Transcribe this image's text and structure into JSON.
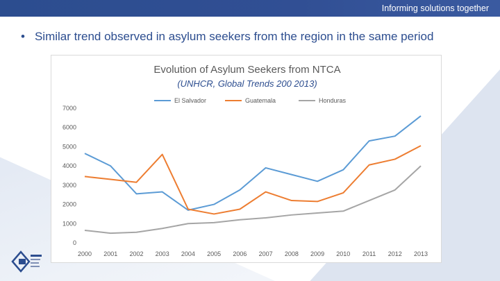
{
  "header": {
    "tagline": "Informing solutions together"
  },
  "slide": {
    "bullet": "Similar trend observed in asylum seekers from the region in the same period"
  },
  "colors": {
    "bar": "#2c4d8f",
    "accent": "#2c4d8f"
  },
  "chart_data": {
    "type": "line",
    "title": "Evolution of Asylum Seekers from NTCA",
    "subtitle": "(UNHCR, Global Trends 200 2013)",
    "x": [
      "2000",
      "2001",
      "2002",
      "2003",
      "2004",
      "2005",
      "2006",
      "2007",
      "2008",
      "2009",
      "2010",
      "2011",
      "2012",
      "2013"
    ],
    "ylim": [
      0,
      7000
    ],
    "yticks": [
      "0",
      "1000",
      "2000",
      "3000",
      "4000",
      "5000",
      "6000",
      "7000"
    ],
    "legend_position": "top",
    "grid": false,
    "series": [
      {
        "name": "El Salvador",
        "color": "#5b9bd5",
        "values": [
          4650,
          4000,
          2550,
          2650,
          1700,
          2000,
          2750,
          3900,
          3550,
          3200,
          3800,
          5300,
          5550,
          6600
        ]
      },
      {
        "name": "Guatemala",
        "color": "#ed7d31",
        "values": [
          3450,
          3300,
          3150,
          4600,
          1750,
          1500,
          1750,
          2650,
          2200,
          2150,
          2600,
          4050,
          4350,
          5050
        ]
      },
      {
        "name": "Honduras",
        "color": "#a5a5a5",
        "values": [
          650,
          500,
          550,
          750,
          1000,
          1050,
          1200,
          1300,
          1450,
          1550,
          1650,
          2200,
          2750,
          4000
        ]
      }
    ]
  }
}
